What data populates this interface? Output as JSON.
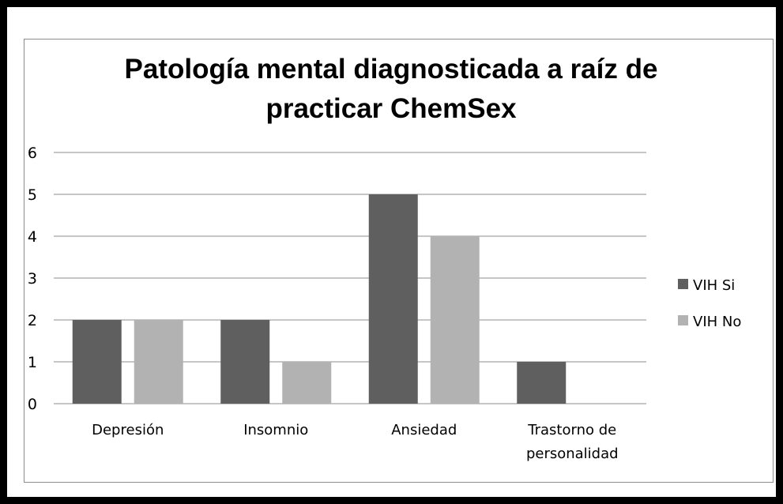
{
  "chart_data": {
    "type": "bar",
    "title_lines": [
      "Patología mental diagnosticada a raíz de",
      "practicar ChemSex"
    ],
    "categories": [
      [
        "Depresión"
      ],
      [
        "Insomnio"
      ],
      [
        "Ansiedad"
      ],
      [
        "Trastorno de",
        "personalidad"
      ]
    ],
    "series": [
      {
        "name": "VIH Si",
        "values": [
          2,
          2,
          5,
          1
        ],
        "color": "#5f5f5f"
      },
      {
        "name": "VIH No",
        "values": [
          2,
          1,
          4,
          0
        ],
        "color": "#b2b2b2"
      }
    ],
    "ylim": [
      0,
      6
    ],
    "yticks": [
      0,
      1,
      2,
      3,
      4,
      5,
      6
    ],
    "grid": true,
    "legend_position": "right",
    "xlabel": "",
    "ylabel": ""
  }
}
